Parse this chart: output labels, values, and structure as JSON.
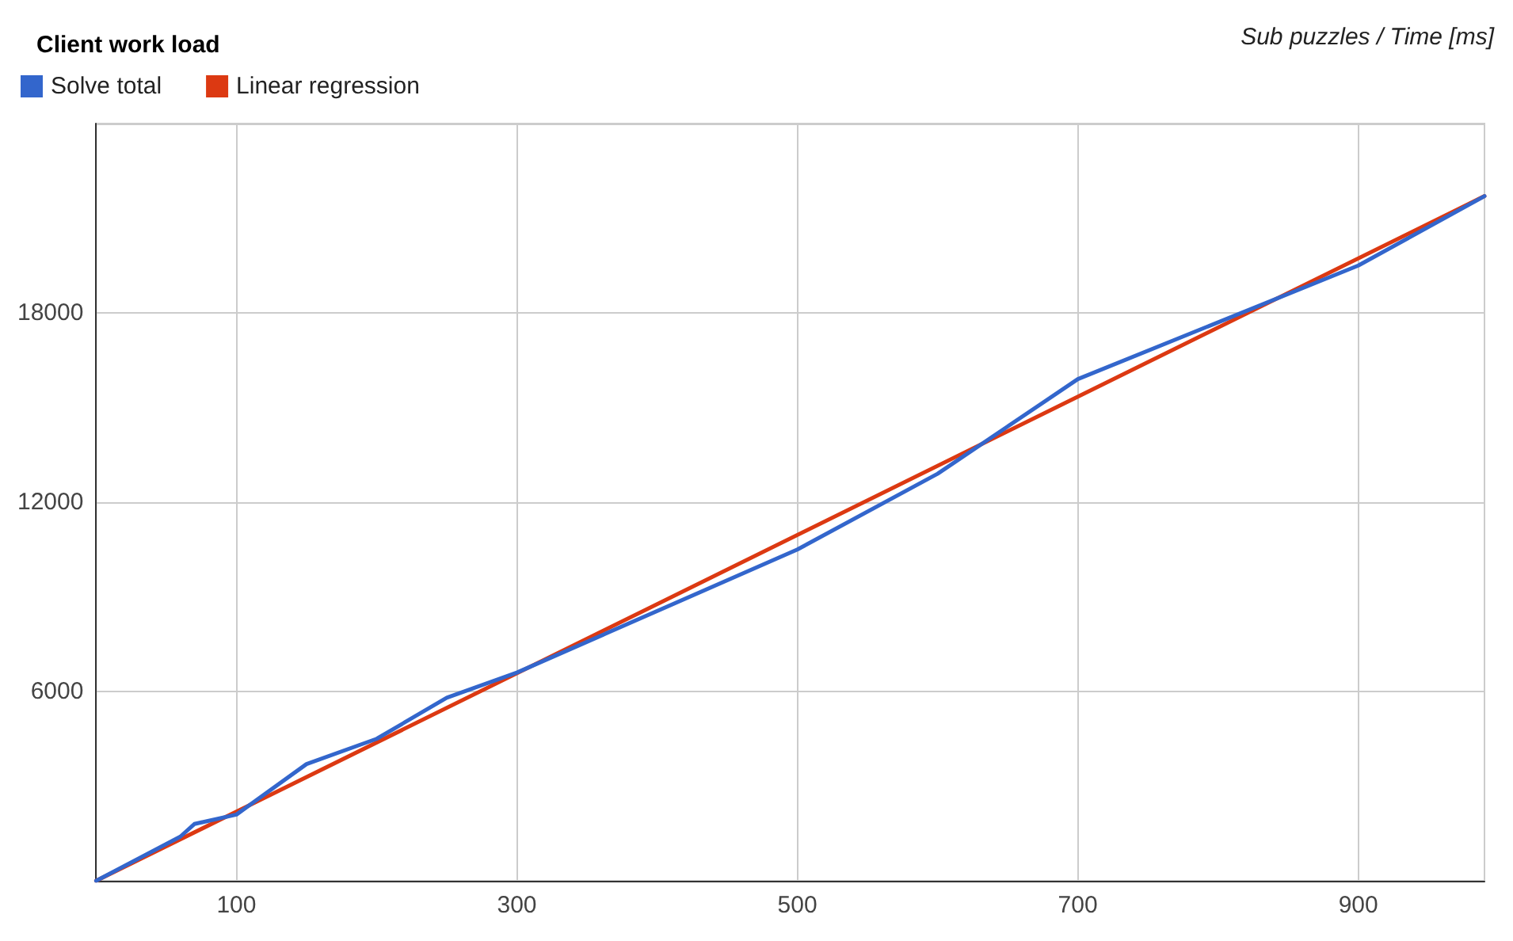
{
  "chart_data": {
    "type": "line",
    "title": "Client work load",
    "annotations": [
      "Sub puzzles / Time [ms]"
    ],
    "series": [
      {
        "name": "Solve total",
        "color": "#3366cc",
        "x": [
          0,
          60,
          70,
          100,
          150,
          200,
          250,
          300,
          500,
          600,
          700,
          900,
          990
        ],
        "values": [
          0,
          1400,
          1800,
          2100,
          3700,
          4500,
          5800,
          6600,
          10500,
          12900,
          15900,
          19500,
          21700
        ]
      },
      {
        "name": "Linear regression",
        "color": "#dc3912",
        "x": [
          0,
          990
        ],
        "values": [
          0,
          21700
        ]
      }
    ],
    "xlim": [
      0,
      990
    ],
    "xticks": [
      100,
      300,
      500,
      700,
      900
    ],
    "ylim": [
      0,
      24000
    ],
    "yticks": [
      6000,
      12000,
      18000,
      {
        "value": 24000,
        "label": null
      }
    ],
    "grid": true,
    "legend": "top left",
    "marker": "none",
    "line_style": "solid"
  }
}
